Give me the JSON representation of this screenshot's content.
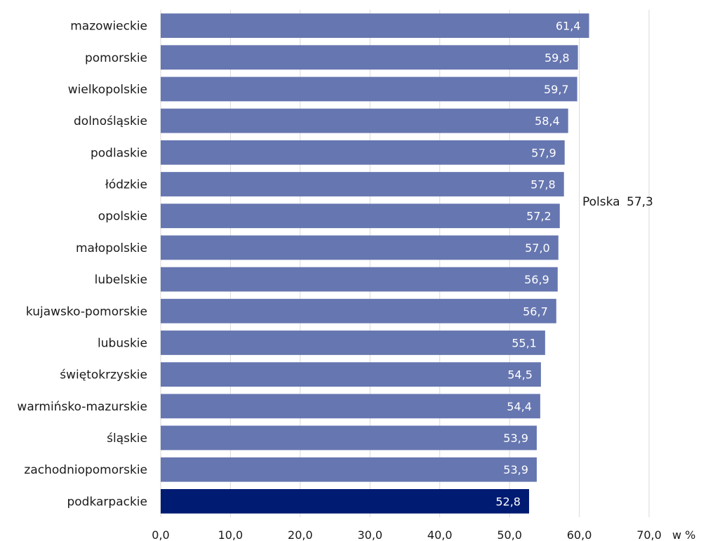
{
  "chart_data": {
    "type": "bar",
    "orientation": "horizontal",
    "categories": [
      "mazowieckie",
      "pomorskie",
      "wielkopolskie",
      "dolnośląskie",
      "podlaskie",
      "łódzkie",
      "opolskie",
      "małopolskie",
      "lubelskie",
      "kujawsko-pomorskie",
      "lubuskie",
      "świętokrzyskie",
      "warmińsko-mazurskie",
      "śląskie",
      "zachodniopomorskie",
      "podkarpackie"
    ],
    "values": [
      61.4,
      59.8,
      59.7,
      58.4,
      57.9,
      57.8,
      57.2,
      57.0,
      56.9,
      56.7,
      55.1,
      54.5,
      54.4,
      53.9,
      53.9,
      52.8
    ],
    "value_labels": [
      "61,4",
      "59,8",
      "59,7",
      "58,4",
      "57,9",
      "57,8",
      "57,2",
      "57,0",
      "56,9",
      "56,7",
      "55,1",
      "54,5",
      "54,4",
      "53,9",
      "53,9",
      "52,8"
    ],
    "highlight_category": "podkarpackie",
    "xlim": [
      0,
      70
    ],
    "x_ticks": [
      0,
      10,
      20,
      30,
      40,
      50,
      60,
      70
    ],
    "x_tick_labels": [
      "0,0",
      "10,0",
      "20,0",
      "30,0",
      "40,0",
      "50,0",
      "60,0",
      "70,0"
    ],
    "x_unit": "w %",
    "reference": {
      "name": "Polska",
      "value": 57.3,
      "label": "57,3"
    },
    "grid": true,
    "colors": {
      "bar": "#6676b0",
      "highlight": "#001b72",
      "grid": "#d9d9d9"
    }
  }
}
